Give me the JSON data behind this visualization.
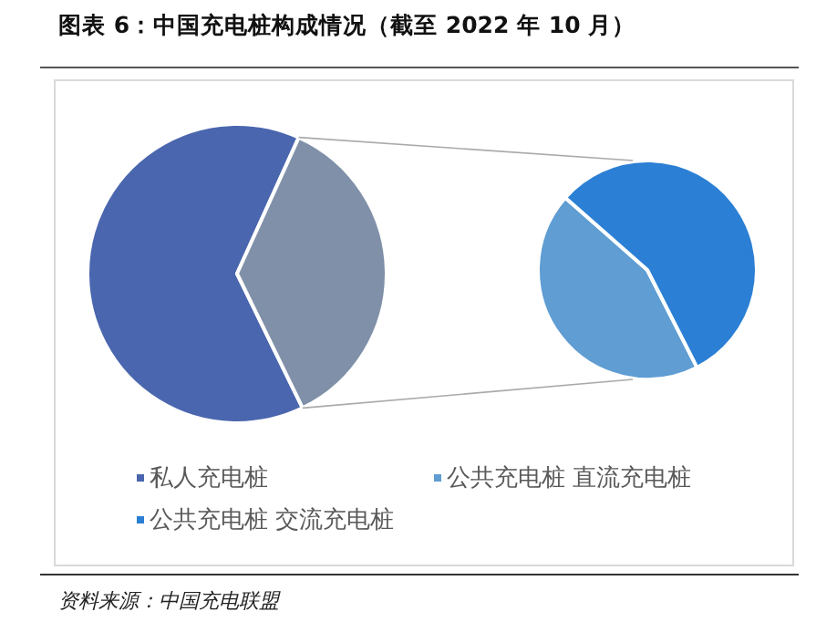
{
  "chart_data": [
    {
      "type": "pie",
      "title": "图表 6：中国充电桩构成情况（截至 2022 年 10 月）",
      "categories": [
        "私人充电桩",
        null
      ],
      "values": [
        64,
        36
      ],
      "colors": [
        "#4a66ae",
        "#7f90a8"
      ],
      "legend": "bottom",
      "annotations": [
        "资料来源：中国充电联盟"
      ]
    },
    {
      "type": "pie",
      "categories": [
        "公共充电桩 直流充电桩",
        "公共充电桩 交流充电桩"
      ],
      "values": [
        44,
        56
      ],
      "colors": [
        "#5f9dd3",
        "#2b7fd4"
      ],
      "legend": "bottom"
    }
  ]
}
